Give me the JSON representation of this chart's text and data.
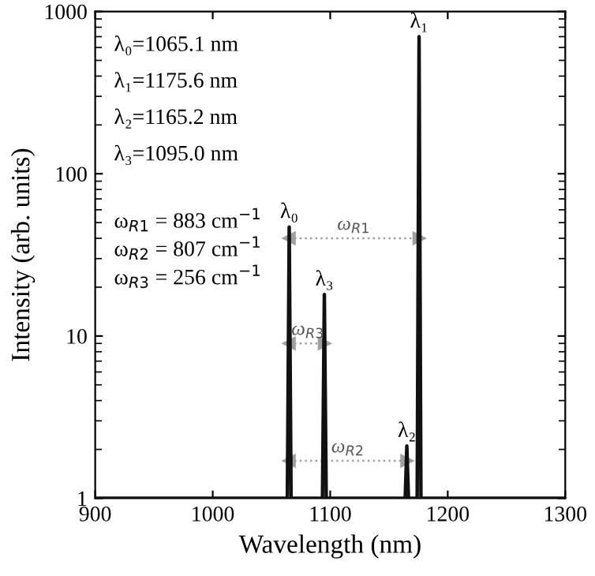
{
  "chart_data": {
    "type": "line",
    "xlabel": "Wavelength (nm)",
    "ylabel": "Intensity (arb. units)",
    "log": "y",
    "xlim": [
      900,
      1300
    ],
    "xticks": [
      900,
      1000,
      1100,
      1200,
      1300
    ],
    "ylim": [
      1,
      1000
    ],
    "yticks": [
      1,
      10,
      100,
      1000
    ],
    "grid": false,
    "legend": false,
    "series": [
      {
        "color": "#111111",
        "x": [
          900,
          1063.5,
          1065.1,
          1066.7,
          1093.4,
          1095.0,
          1096.6,
          1163.8,
          1165.2,
          1166.6,
          1174.0,
          1175.6,
          1177.2,
          1300
        ],
        "values": [
          1,
          1,
          47,
          1,
          1,
          18,
          1,
          1,
          2.1,
          1,
          1,
          700,
          1,
          1
        ]
      },
      {
        "color": "#a0a0a0",
        "x": [
          1065.1,
          1175.6
        ],
        "values": [
          40,
          40
        ],
        "line_style": "dotted",
        "marker": "triangle"
      },
      {
        "color": "#a0a0a0",
        "x": [
          1065.1,
          1095.0
        ],
        "values": [
          9,
          9
        ],
        "line_style": "dotted",
        "marker": "triangle"
      },
      {
        "color": "#a0a0a0",
        "x": [
          1065.1,
          1165.2
        ],
        "values": [
          1.7,
          1.7
        ],
        "line_style": "dotted",
        "marker": "triangle"
      }
    ],
    "annotations": [
      {
        "text": "λ₀",
        "x": 1065.1,
        "y": 47
      },
      {
        "text": "λ₃",
        "x": 1095.0,
        "y": 18
      },
      {
        "text": "λ₂",
        "x": 1165.2,
        "y": 2.1
      },
      {
        "text": "λ₁",
        "x": 1175.6,
        "y": 700
      },
      {
        "text": "ω$_{R1}$",
        "x": 1120,
        "y": 40
      },
      {
        "text": "ω$_{R3}$",
        "x": 1081,
        "y": 9
      },
      {
        "text": "ω$_{R2}$",
        "x": 1115,
        "y": 1.7
      },
      "λ₀=1065.1 nm",
      "λ₁=1175.6 nm",
      "λ₂=1165.2 nm",
      "λ₃=1095.0 nm",
      "ω$_{R1}$ = 883 cm$^{−1}$",
      "ω$_{R2}$ = 807 cm$^{−1}$",
      "ω$_{R3}$ = 256 cm$^{−1}$"
    ]
  }
}
